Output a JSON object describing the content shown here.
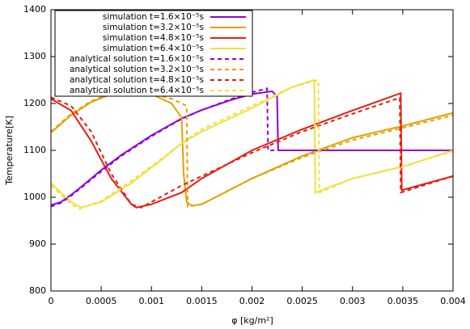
{
  "chart_data": {
    "type": "line",
    "xlabel": "φ [kg/m²]",
    "ylabel": "Temperature[K]",
    "xlim": [
      0,
      0.004
    ],
    "ylim": [
      800,
      1400
    ],
    "xticks": [
      0,
      0.0005,
      0.001,
      0.0015,
      0.002,
      0.0025,
      0.003,
      0.0035,
      0.004
    ],
    "yticks": [
      800,
      900,
      1000,
      1100,
      1200,
      1300,
      1400
    ],
    "legend": "top-left",
    "series": [
      {
        "name": "simulation t=1.6×10⁻⁵s",
        "color": "#9400d3",
        "dashed": false,
        "x": [
          0,
          0.0001,
          0.0002,
          0.0003,
          0.0005,
          0.0007,
          0.001,
          0.0013,
          0.0015,
          0.0018,
          0.002,
          0.0022,
          0.00225,
          0.00226,
          0.004
        ],
        "values": [
          983,
          990,
          1005,
          1022,
          1058,
          1090,
          1132,
          1168,
          1186,
          1208,
          1220,
          1226,
          1215,
          1100,
          1100
        ]
      },
      {
        "name": "simulation t=3.2×10⁻⁵s",
        "color": "#e69f00",
        "dashed": false,
        "x": [
          0,
          0.0002,
          0.0004,
          0.0006,
          0.0008,
          0.001,
          0.0012,
          0.0013,
          0.00132,
          0.00135,
          0.0014,
          0.0015,
          0.002,
          0.0025,
          0.003,
          0.0035,
          0.004
        ],
        "values": [
          1138,
          1175,
          1203,
          1220,
          1225,
          1220,
          1200,
          1170,
          1050,
          990,
          982,
          985,
          1040,
          1088,
          1127,
          1152,
          1180
        ]
      },
      {
        "name": "simulation t=4.8×10⁻⁵s",
        "color": "#e51e10",
        "dashed": false,
        "x": [
          0,
          0.0002,
          0.0004,
          0.0006,
          0.0008,
          0.00085,
          0.001,
          0.0013,
          0.0015,
          0.002,
          0.0025,
          0.003,
          0.00348,
          0.00349,
          0.004
        ],
        "values": [
          1210,
          1185,
          1120,
          1040,
          985,
          978,
          985,
          1010,
          1040,
          1100,
          1145,
          1185,
          1222,
          1015,
          1045
        ]
      },
      {
        "name": "simulation t=6.4×10⁻⁵s",
        "color": "#f0e040",
        "dashed": false,
        "x": [
          0,
          0.0002,
          0.0003,
          0.0005,
          0.0008,
          0.0011,
          0.0013,
          0.0015,
          0.002,
          0.0024,
          0.00262,
          0.00263,
          0.003,
          0.0035,
          0.004
        ],
        "values": [
          1030,
          990,
          978,
          990,
          1030,
          1080,
          1115,
          1140,
          1190,
          1235,
          1250,
          1010,
          1040,
          1065,
          1100
        ]
      },
      {
        "name": "analytical solution t=1.6×10⁻⁵s",
        "color": "#9400d3",
        "dashed": true,
        "x": [
          0,
          0.0001,
          0.0002,
          0.0003,
          0.0005,
          0.0007,
          0.001,
          0.0013,
          0.0015,
          0.0018,
          0.002,
          0.00215,
          0.00216,
          0.004
        ],
        "values": [
          980,
          988,
          1003,
          1020,
          1055,
          1088,
          1130,
          1167,
          1186,
          1210,
          1224,
          1232,
          1100,
          1100
        ]
      },
      {
        "name": "analytical solution t=3.2×10⁻⁵s",
        "color": "#e69f00",
        "dashed": true,
        "x": [
          0,
          0.0002,
          0.0004,
          0.0006,
          0.0008,
          0.001,
          0.0012,
          0.00135,
          0.00136,
          0.0015,
          0.002,
          0.0025,
          0.003,
          0.0035,
          0.004
        ],
        "values": [
          1140,
          1178,
          1205,
          1222,
          1226,
          1222,
          1210,
          1195,
          980,
          985,
          1040,
          1085,
          1122,
          1148,
          1175
        ]
      },
      {
        "name": "analytical solution t=4.8×10⁻⁵s",
        "color": "#e51e10",
        "dashed": true,
        "x": [
          0,
          0.0002,
          0.0004,
          0.0006,
          0.0008,
          0.0009,
          0.001,
          0.0013,
          0.0015,
          0.002,
          0.0025,
          0.003,
          0.00347,
          0.00348,
          0.004
        ],
        "values": [
          1213,
          1195,
          1140,
          1050,
          985,
          978,
          990,
          1025,
          1045,
          1095,
          1140,
          1178,
          1212,
          1010,
          1045
        ]
      },
      {
        "name": "analytical solution t=6.4×10⁻⁵s",
        "color": "#f0e040",
        "dashed": true,
        "x": [
          0,
          0.0002,
          0.00028,
          0.0005,
          0.0008,
          0.0011,
          0.0013,
          0.0015,
          0.002,
          0.0024,
          0.00266,
          0.00267,
          0.003,
          0.0035,
          0.004
        ],
        "values": [
          1025,
          985,
          975,
          992,
          1035,
          1082,
          1115,
          1145,
          1195,
          1235,
          1250,
          1010,
          1040,
          1066,
          1098
        ]
      }
    ]
  }
}
